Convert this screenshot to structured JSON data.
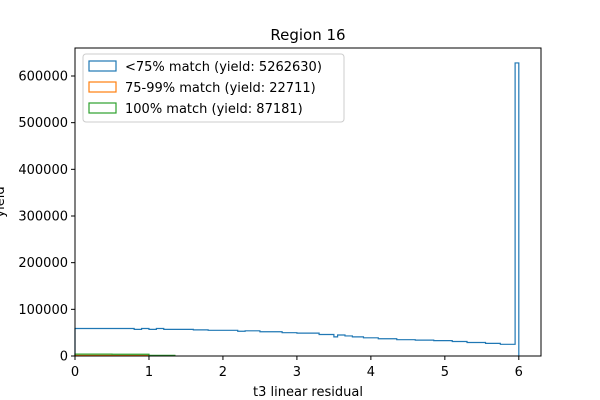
{
  "chart_data": {
    "type": "histogram-step",
    "title": "Region 16",
    "xlabel": "t3 linear residual",
    "ylabel": "yield",
    "xlim": [
      0,
      6.3
    ],
    "ylim": [
      0,
      660000
    ],
    "xticks": [
      0,
      1,
      2,
      3,
      4,
      5,
      6
    ],
    "yticks": [
      0,
      100000,
      200000,
      300000,
      400000,
      500000,
      600000
    ],
    "grid": false,
    "legend_position": "top-left",
    "series": [
      {
        "name": "<75% match (yield: 5262630)",
        "color": "#1f77b4",
        "edges": [
          0,
          0.8,
          0.9,
          1.0,
          1.1,
          1.2,
          1.4,
          1.6,
          1.8,
          2.0,
          2.2,
          2.3,
          2.5,
          2.8,
          3.0,
          3.3,
          3.5,
          3.55,
          3.65,
          3.75,
          3.9,
          4.1,
          4.35,
          4.6,
          4.85,
          5.1,
          5.3,
          5.55,
          5.75,
          5.95,
          6.0
        ],
        "values": [
          59000,
          57000,
          59000,
          57000,
          59000,
          57000,
          57000,
          56000,
          55000,
          55000,
          53000,
          54000,
          52000,
          50000,
          49000,
          46000,
          41000,
          45000,
          43000,
          41000,
          39000,
          37000,
          35000,
          34000,
          33000,
          31000,
          29000,
          27000,
          25000,
          628000
        ]
      },
      {
        "name": "75-99% match (yield: 22711)",
        "color": "#ff7f0e",
        "edges": [
          0,
          0.5,
          1.0,
          1.35
        ],
        "values": [
          1400,
          1200,
          900
        ]
      },
      {
        "name": "100% match (yield: 87181)",
        "color": "#2ca02c",
        "edges": [
          0,
          0.5,
          1.0,
          1.35
        ],
        "values": [
          4000,
          3800,
          1500
        ]
      }
    ]
  }
}
